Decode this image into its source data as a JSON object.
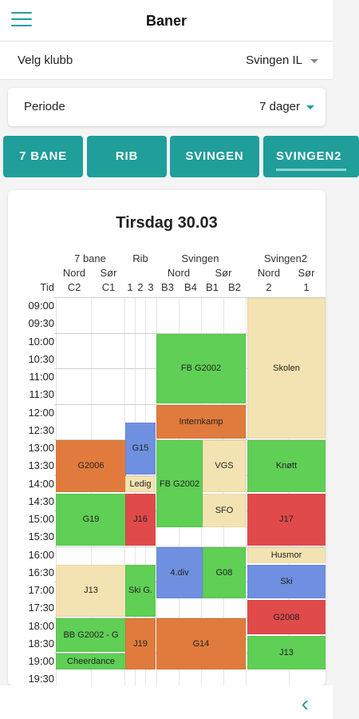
{
  "header": {
    "title": "Baner",
    "menu_icon": "hamburger-menu-icon"
  },
  "club": {
    "label": "Velg klubb",
    "value": "Svingen IL"
  },
  "period": {
    "label": "Periode",
    "value": "7 dager"
  },
  "tabs": [
    {
      "label": "7 BANE",
      "active": false
    },
    {
      "label": "RIB",
      "active": false
    },
    {
      "label": "SVINGEN",
      "active": false
    },
    {
      "label": "SVINGEN2",
      "active": true
    }
  ],
  "day": {
    "title": "Tirsdag 30.03"
  },
  "schedule": {
    "time_header": "Tid",
    "fields": [
      {
        "name": "7 bane",
        "subs": [
          {
            "line1": "Nord",
            "line2": "C2"
          },
          {
            "line1": "Sør",
            "line2": "C1"
          }
        ]
      },
      {
        "name": "Rib",
        "subs": [
          {
            "line1": "",
            "line2": "1"
          },
          {
            "line1": "",
            "line2": "2"
          },
          {
            "line1": "",
            "line2": "3"
          }
        ]
      },
      {
        "name": "Svingen",
        "subs": [
          {
            "line1": "Nord",
            "line2": "B3"
          },
          {
            "line1": "",
            "line2": "B4"
          },
          {
            "line1": "Sør",
            "line2": "B1"
          },
          {
            "line1": "",
            "line2": "B2"
          }
        ]
      },
      {
        "name": "Svingen2",
        "subs": [
          {
            "line1": "Nord",
            "line2": "2"
          },
          {
            "line1": "Sør",
            "line2": "1"
          }
        ]
      }
    ],
    "times": [
      "09:00",
      "09:30",
      "10:00",
      "10:30",
      "11:00",
      "11:30",
      "12:00",
      "12:30",
      "13:00",
      "13:30",
      "14:00",
      "14:30",
      "15:00",
      "15:30",
      "16:00",
      "16:30",
      "17:00",
      "17:30",
      "18:00",
      "18:30",
      "19:00",
      "19:30"
    ],
    "bookings": [
      {
        "label": "G2006",
        "column": "7 bane Nord C2 – Sør C1",
        "start": "13:00",
        "end": "14:30",
        "color": "#e07b3d"
      },
      {
        "label": "G19",
        "column": "7 bane Nord C2 – Sør C1",
        "start": "14:30",
        "end": "16:00",
        "color": "#5fcf55"
      },
      {
        "label": "J13",
        "column": "7 bane Nord C2 – Sør C1",
        "start": "16:30",
        "end": "18:00",
        "color": "#f4e3b2"
      },
      {
        "label": "BB G2002 - G",
        "column": "7 bane Nord C2 – Sør C1",
        "start": "18:00",
        "end": "19:00",
        "color": "#5fcf55"
      },
      {
        "label": "Cheerdance",
        "column": "7 bane Nord C2 – Sør C1",
        "start": "19:00",
        "end": "19:30",
        "color": "#5fcf55"
      },
      {
        "label": "G15",
        "column": "Rib 1–3",
        "start": "12:30",
        "end": "14:00",
        "color": "#6f8fe0"
      },
      {
        "label": "Ledig",
        "column": "Rib 1–3",
        "start": "14:00",
        "end": "14:30",
        "color": "#f4e3b2"
      },
      {
        "label": "J16",
        "column": "Rib 1–3",
        "start": "14:30",
        "end": "16:00",
        "color": "#e04a4a"
      },
      {
        "label": "Ski G.",
        "column": "Rib 1–3",
        "start": "16:30",
        "end": "18:00",
        "color": "#5fcf55"
      },
      {
        "label": "J19",
        "column": "Rib 1–3",
        "start": "18:00",
        "end": "19:30",
        "color": "#e07b3d"
      },
      {
        "label": "FB G2002",
        "column": "Svingen B3–B2",
        "start": "10:00",
        "end": "12:00",
        "color": "#5fcf55"
      },
      {
        "label": "Internkamp",
        "column": "Svingen B3–B2",
        "start": "12:00",
        "end": "13:00",
        "color": "#e07b3d"
      },
      {
        "label": "FB G2002",
        "column": "Svingen B3–B4",
        "start": "13:00",
        "end": "15:30",
        "color": "#5fcf55"
      },
      {
        "label": "VGS",
        "column": "Svingen B1–B2",
        "start": "13:00",
        "end": "14:30",
        "color": "#f4e3b2"
      },
      {
        "label": "SFO",
        "column": "Svingen B1–B2",
        "start": "14:30",
        "end": "15:30",
        "color": "#f4e3b2"
      },
      {
        "label": "G08",
        "column": "Svingen B1–B2",
        "start": "16:00",
        "end": "17:30",
        "color": "#5fcf55"
      },
      {
        "label": "4.div",
        "column": "Svingen B3–B4",
        "start": "16:00",
        "end": "17:30",
        "color": "#6f8fe0"
      },
      {
        "label": "G14",
        "column": "Svingen B3–B2",
        "start": "18:00",
        "end": "19:30",
        "color": "#e07b3d"
      },
      {
        "label": "Skolen",
        "column": "Svingen2",
        "start": "09:00",
        "end": "13:00",
        "color": "#f4e3b2"
      },
      {
        "label": "Knøtt",
        "column": "Svingen2",
        "start": "13:00",
        "end": "14:30",
        "color": "#5fcf55"
      },
      {
        "label": "J17",
        "column": "Svingen2",
        "start": "14:30",
        "end": "16:00",
        "color": "#e04a4a"
      },
      {
        "label": "Husmor",
        "column": "Svingen2",
        "start": "16:00",
        "end": "16:30",
        "color": "#f4e3b2"
      },
      {
        "label": "Ski",
        "column": "Svingen2",
        "start": "16:30",
        "end": "17:30",
        "color": "#6f8fe0"
      },
      {
        "label": "G2008",
        "column": "Svingen2",
        "start": "17:30",
        "end": "18:30",
        "color": "#e04a4a"
      },
      {
        "label": "J13",
        "column": "Svingen2",
        "start": "18:30",
        "end": "19:30",
        "color": "#5fcf55"
      }
    ]
  },
  "footer": {
    "back_icon": "chevron-left-icon"
  },
  "colors": {
    "accent": "#1f9e9a",
    "green": "#5fcf55",
    "orange": "#e07b3d",
    "blue": "#6f8fe0",
    "red": "#e04a4a",
    "beige": "#f4e3b2"
  }
}
